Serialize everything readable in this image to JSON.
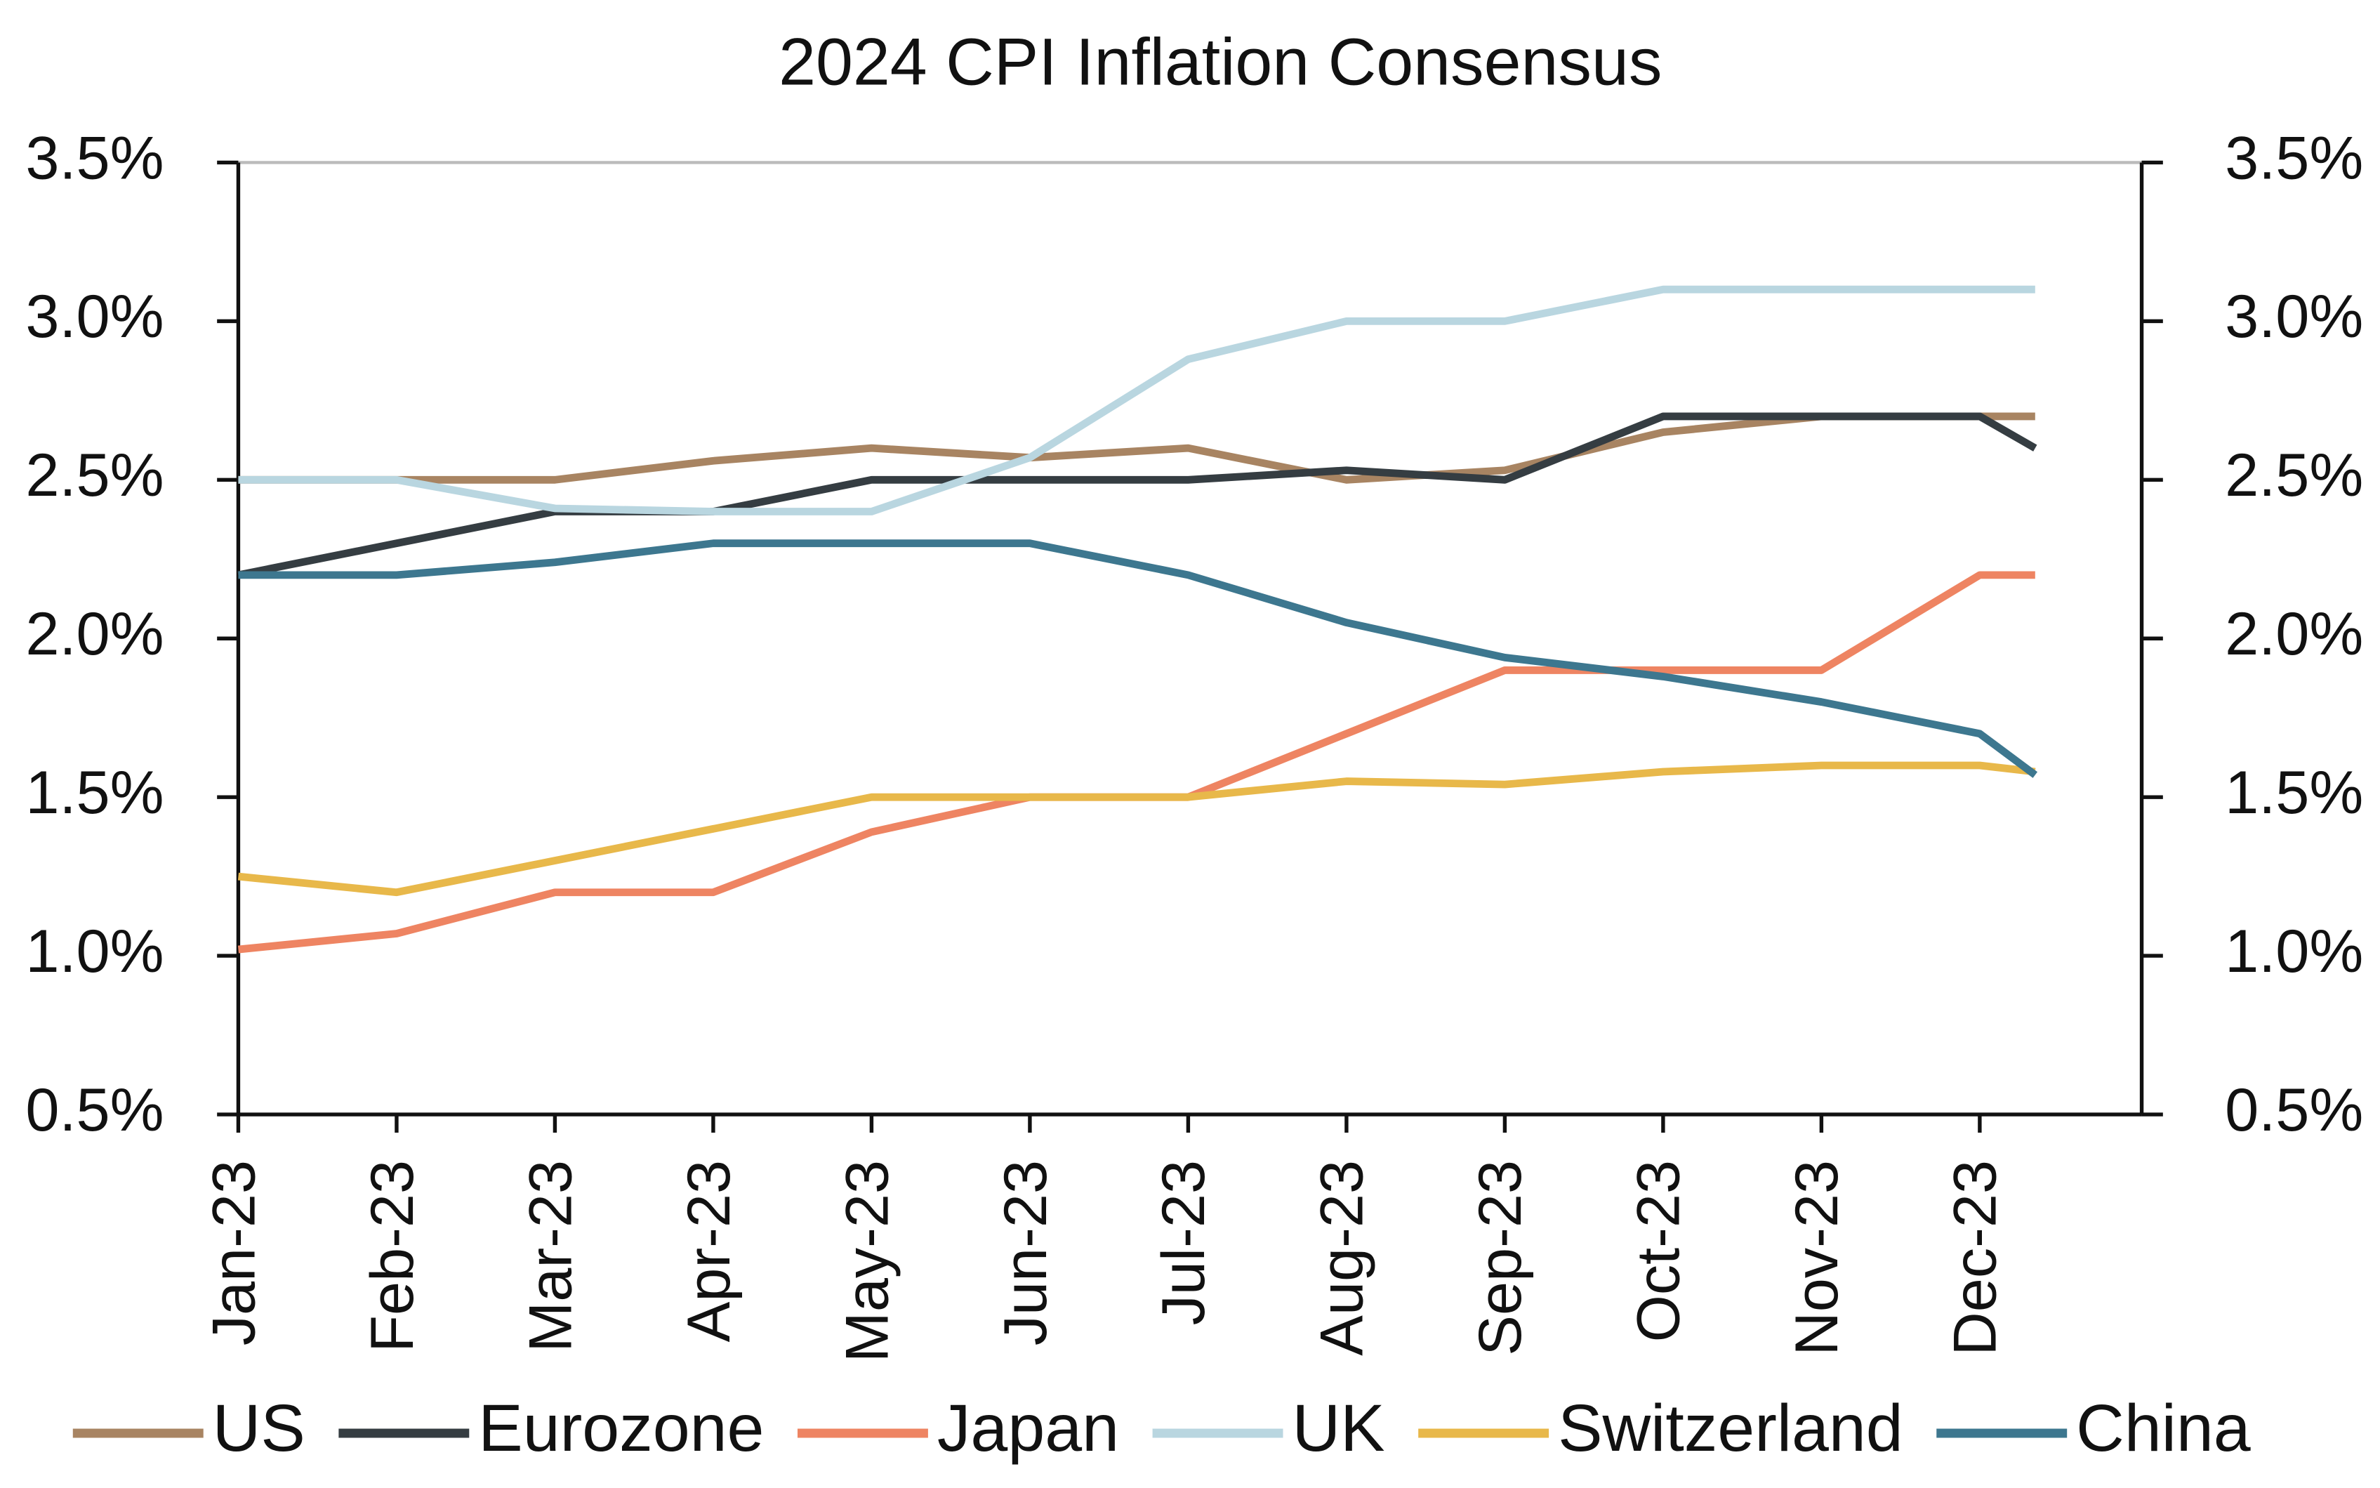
{
  "chart_data": {
    "type": "line",
    "title": "2024 CPI Inflation Consensus",
    "categories": [
      "Jan-23",
      "Feb-23",
      "Mar-23",
      "Apr-23",
      "May-23",
      "Jun-23",
      "Jul-23",
      "Aug-23",
      "Sep-23",
      "Oct-23",
      "Nov-23",
      "Dec-23",
      null
    ],
    "series": [
      {
        "name": "US",
        "color": "#a88462",
        "values": [
          2.5,
          2.5,
          2.5,
          2.56,
          2.6,
          2.57,
          2.6,
          2.5,
          2.53,
          2.65,
          2.7,
          2.7,
          2.7
        ]
      },
      {
        "name": "Eurozone",
        "color": "#353d42",
        "values": [
          2.2,
          2.3,
          2.4,
          2.4,
          2.5,
          2.5,
          2.5,
          2.53,
          2.5,
          2.7,
          2.7,
          2.7,
          2.6
        ]
      },
      {
        "name": "Japan",
        "color": "#ee8462",
        "values": [
          1.02,
          1.07,
          1.2,
          1.2,
          1.39,
          1.5,
          1.5,
          1.7,
          1.9,
          1.9,
          1.9,
          2.2,
          2.2
        ]
      },
      {
        "name": "UK",
        "color": "#b9d6e0",
        "values": [
          2.5,
          2.5,
          2.41,
          2.4,
          2.4,
          2.57,
          2.88,
          3.0,
          3.0,
          3.1,
          3.1,
          3.1,
          3.1
        ]
      },
      {
        "name": "Switzerland",
        "color": "#e8b84a",
        "values": [
          1.25,
          1.2,
          1.3,
          1.4,
          1.5,
          1.5,
          1.5,
          1.55,
          1.54,
          1.58,
          1.6,
          1.6,
          1.58
        ]
      },
      {
        "name": "China",
        "color": "#3d778f",
        "values": [
          2.2,
          2.2,
          2.24,
          2.3,
          2.3,
          2.3,
          2.2,
          2.05,
          1.94,
          1.88,
          1.8,
          1.7,
          1.57
        ]
      }
    ],
    "ylim": [
      0.5,
      3.5
    ],
    "yticks": [
      {
        "value": 0.5,
        "label": "0.5%"
      },
      {
        "value": 1.0,
        "label": "1.0%"
      },
      {
        "value": 1.5,
        "label": "1.5%"
      },
      {
        "value": 2.0,
        "label": "2.0%"
      },
      {
        "value": 2.5,
        "label": "2.5%"
      },
      {
        "value": 3.0,
        "label": "3.0%"
      },
      {
        "value": 3.5,
        "label": "3.5%"
      }
    ],
    "y2lim": [
      0.5,
      3.5
    ],
    "y2ticks": [
      {
        "value": 0.5,
        "label": "0.5%"
      },
      {
        "value": 1.0,
        "label": "1.0%"
      },
      {
        "value": 1.5,
        "label": "1.5%"
      },
      {
        "value": 2.0,
        "label": "2.0%"
      },
      {
        "value": 2.5,
        "label": "2.5%"
      },
      {
        "value": 3.0,
        "label": "3.0%"
      },
      {
        "value": 3.5,
        "label": "3.5%"
      }
    ],
    "legend": "bottom"
  }
}
